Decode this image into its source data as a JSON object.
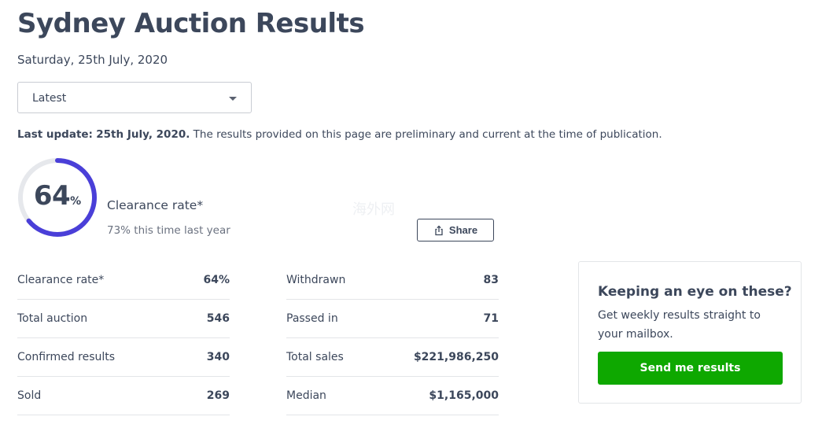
{
  "header": {
    "title": "Sydney Auction Results",
    "date": "Saturday, 25th July, 2020"
  },
  "filter": {
    "selected": "Latest"
  },
  "notice": {
    "label": "Last update:",
    "date": "25th July, 2020.",
    "text": " The results provided on this page are preliminary and current at the time of publication."
  },
  "clearance": {
    "value": "64",
    "unit": "%",
    "fraction": 0.64,
    "label": "Clearance rate*",
    "last_year": "73% this time last year",
    "ring_color": "#4a3fd8",
    "track_color": "#e6e8ec"
  },
  "watermark": "海外网",
  "share": {
    "label": "Share",
    "icon": "share-icon"
  },
  "stats": {
    "left": [
      {
        "label": "Clearance rate*",
        "value": "64%"
      },
      {
        "label": "Total auction",
        "value": "546"
      },
      {
        "label": "Confirmed results",
        "value": "340"
      },
      {
        "label": "Sold",
        "value": "269"
      }
    ],
    "right": [
      {
        "label": "Withdrawn",
        "value": "83"
      },
      {
        "label": "Passed in",
        "value": "71"
      },
      {
        "label": "Total sales",
        "value": "$221,986,250"
      },
      {
        "label": "Median",
        "value": "$1,165,000"
      }
    ]
  },
  "subscribe": {
    "title": "Keeping an eye on these?",
    "text": "Get weekly results straight to your mailbox.",
    "button": "Send me results",
    "button_color": "#0ea800"
  }
}
